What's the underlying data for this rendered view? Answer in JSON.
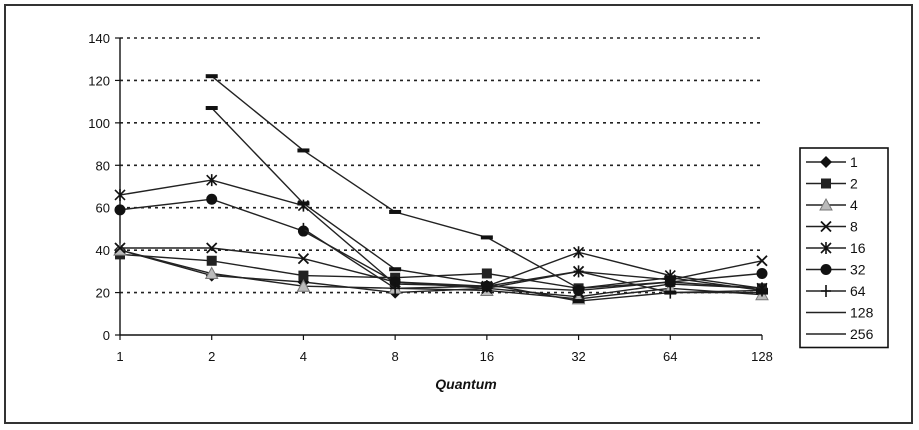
{
  "chart_data": {
    "type": "line",
    "title": "",
    "xlabel": "Quantum",
    "ylabel": "",
    "categories": [
      "1",
      "2",
      "4",
      "8",
      "16",
      "32",
      "64",
      "128"
    ],
    "ylim": [
      0,
      140
    ],
    "yticks": [
      0,
      20,
      40,
      60,
      80,
      100,
      120,
      140
    ],
    "grid": "horizontal dotted",
    "legend_position": "right",
    "series": [
      {
        "name": "1",
        "marker": "diamond",
        "values": [
          40,
          28,
          25,
          20,
          22,
          18,
          24,
          22
        ]
      },
      {
        "name": "2",
        "marker": "square",
        "values": [
          38,
          35,
          28,
          27,
          29,
          22,
          25,
          22
        ]
      },
      {
        "name": "4",
        "marker": "triangle",
        "values": [
          40,
          29,
          23,
          22,
          21,
          17,
          22,
          19
        ]
      },
      {
        "name": "8",
        "marker": "x",
        "values": [
          41,
          41,
          36,
          25,
          22,
          30,
          26,
          35
        ]
      },
      {
        "name": "16",
        "marker": "asterisk",
        "values": [
          66,
          73,
          61,
          24,
          23,
          39,
          28,
          22
        ]
      },
      {
        "name": "32",
        "marker": "circle",
        "values": [
          59,
          64,
          49,
          25,
          23,
          21,
          25,
          29
        ]
      },
      {
        "name": "64",
        "marker": "plus",
        "values": [
          null,
          null,
          50,
          22,
          23,
          30,
          20,
          21
        ]
      },
      {
        "name": "128",
        "marker": "dash",
        "values": [
          null,
          107,
          62,
          31,
          24,
          16,
          20,
          20
        ]
      },
      {
        "name": "256",
        "marker": "dash",
        "values": [
          null,
          122,
          87,
          58,
          46,
          22,
          27,
          21
        ]
      }
    ]
  }
}
